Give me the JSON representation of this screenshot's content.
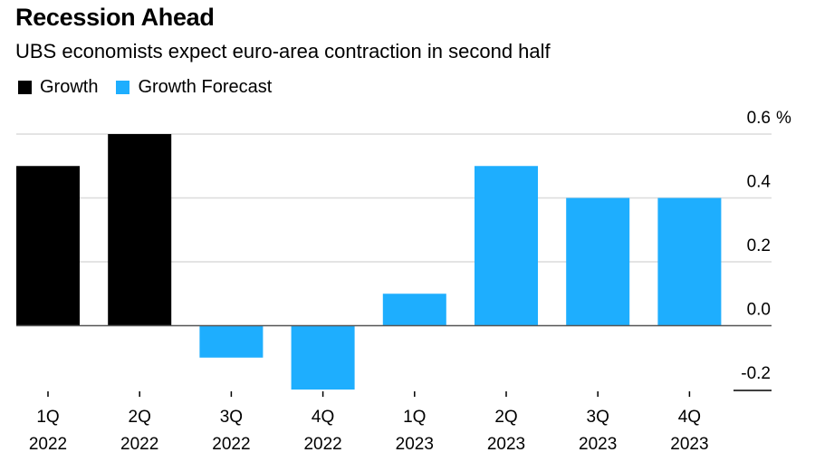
{
  "chart_data": {
    "type": "bar",
    "title": "Recession Ahead",
    "subtitle": "UBS economists expect euro-area contraction in second half",
    "xlabel": "",
    "ylabel": "",
    "y_unit": "%",
    "ylim": [
      -0.2,
      0.6
    ],
    "yticks": [
      0.6,
      0.4,
      0.2,
      0.0,
      -0.2
    ],
    "ytick_labels": [
      "0.6",
      "0.4",
      "0.2",
      "0.0",
      "-0.2"
    ],
    "grid": true,
    "y_axis_side": "right",
    "legend_position": "top-left",
    "categories": [
      {
        "line1": "1Q",
        "line2": "2022"
      },
      {
        "line1": "2Q",
        "line2": "2022"
      },
      {
        "line1": "3Q",
        "line2": "2022"
      },
      {
        "line1": "4Q",
        "line2": "2022"
      },
      {
        "line1": "1Q",
        "line2": "2023"
      },
      {
        "line1": "2Q",
        "line2": "2023"
      },
      {
        "line1": "3Q",
        "line2": "2023"
      },
      {
        "line1": "4Q",
        "line2": "2023"
      }
    ],
    "series": [
      {
        "name": "Growth",
        "color": "#000000",
        "values": [
          0.5,
          0.6,
          null,
          null,
          null,
          null,
          null,
          null
        ]
      },
      {
        "name": "Growth Forecast",
        "color": "#1eaefe",
        "values": [
          null,
          null,
          -0.1,
          -0.2,
          0.1,
          0.5,
          0.4,
          0.4
        ]
      }
    ]
  },
  "colors": {
    "gridline": "#dcdcdc",
    "zero_line": "#555555"
  }
}
